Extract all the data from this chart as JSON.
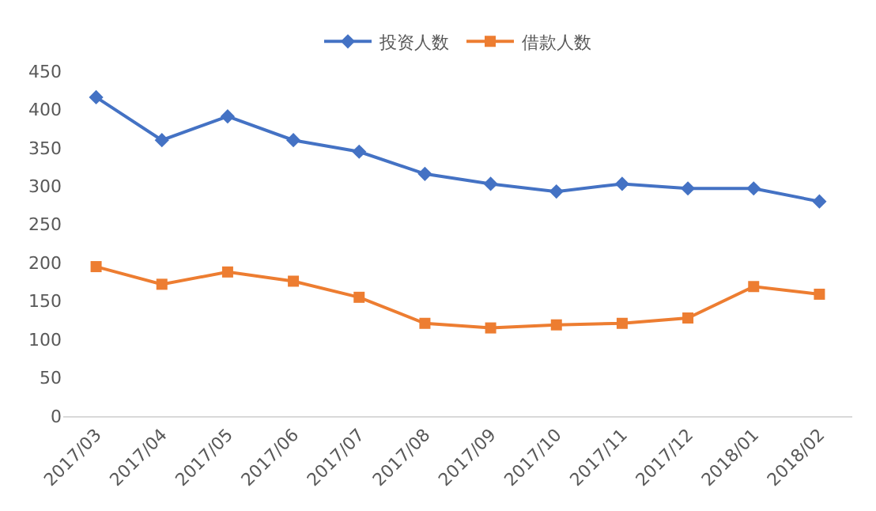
{
  "chart_data": {
    "type": "line",
    "categories": [
      "2017/03",
      "2017/04",
      "2017/05",
      "2017/06",
      "2017/07",
      "2017/08",
      "2017/09",
      "2017/10",
      "2017/11",
      "2017/12",
      "2018/01",
      "2018/02"
    ],
    "series": [
      {
        "name": "投资人数",
        "color": "#4472c4",
        "marker": "diamond",
        "values": [
          416,
          360,
          391,
          360,
          345,
          316,
          303,
          293,
          303,
          297,
          297,
          280
        ]
      },
      {
        "name": "借款人数",
        "color": "#ed7d31",
        "marker": "square",
        "values": [
          195,
          172,
          188,
          176,
          155,
          121,
          115,
          119,
          121,
          128,
          169,
          159
        ]
      }
    ],
    "ylim": [
      0,
      450
    ],
    "yticks": [
      0,
      50,
      100,
      150,
      200,
      250,
      300,
      350,
      400,
      450
    ],
    "grid": false,
    "legend": "top",
    "line_style": "solid"
  }
}
